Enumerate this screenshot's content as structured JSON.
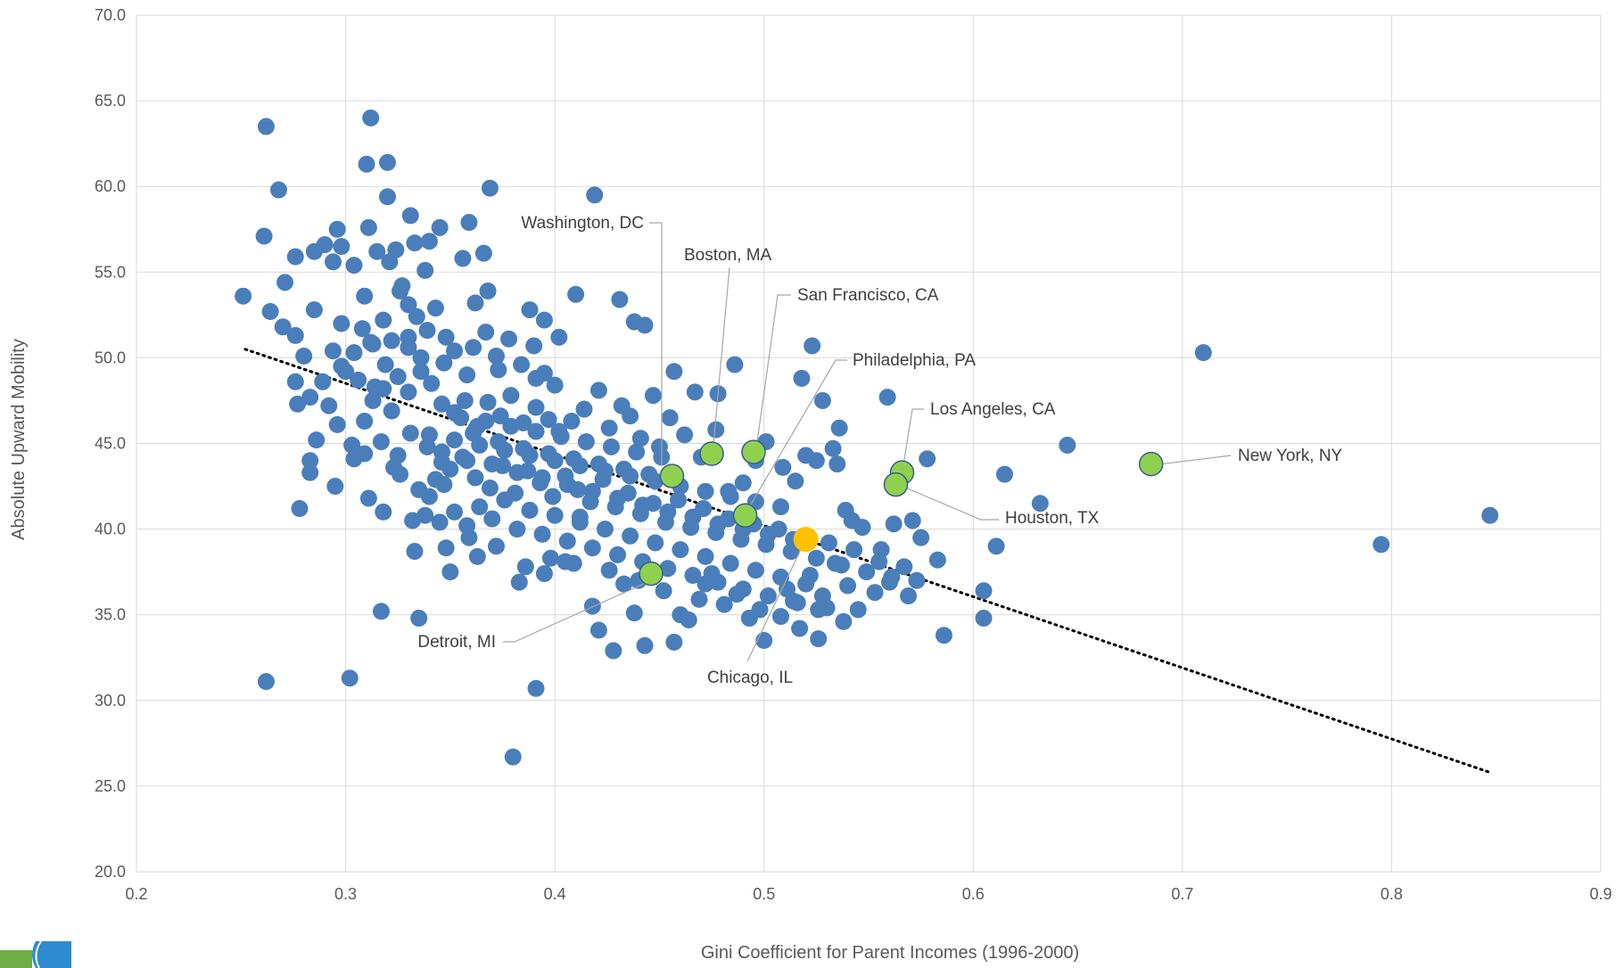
{
  "chart_data": {
    "type": "scatter",
    "title": "",
    "xlabel": "Gini Coefficient for Parent Incomes (1996-2000)",
    "ylabel": "Absolute Upward Mobility",
    "xlim": [
      0.2,
      0.9
    ],
    "ylim": [
      20.0,
      70.0
    ],
    "x_ticks": [
      "0.2",
      "0.3",
      "0.4",
      "0.5",
      "0.6",
      "0.7",
      "0.8",
      "0.9"
    ],
    "y_ticks": [
      "20.0",
      "25.0",
      "30.0",
      "35.0",
      "40.0",
      "45.0",
      "50.0",
      "55.0",
      "60.0",
      "65.0",
      "70.0"
    ],
    "grid": true,
    "legend": "none",
    "colors": {
      "points": "#4a7ebb",
      "highlight": "#8fd14f",
      "special": "#ffc000",
      "trendline": "#000000"
    },
    "trendline": {
      "style": "dotted",
      "x": [
        0.252,
        0.847
      ],
      "y": [
        50.5,
        25.8
      ]
    },
    "special_point": {
      "x": 0.52,
      "y": 39.4
    },
    "highlighted": [
      {
        "label": "Washington, DC",
        "x": 0.456,
        "y": 43.1
      },
      {
        "label": "Boston, MA",
        "x": 0.475,
        "y": 44.4
      },
      {
        "label": "San Francisco, CA",
        "x": 0.495,
        "y": 44.5
      },
      {
        "label": "Philadelphia, PA",
        "x": 0.491,
        "y": 40.8
      },
      {
        "label": "Los Angeles, CA",
        "x": 0.566,
        "y": 43.3
      },
      {
        "label": "New York, NY",
        "x": 0.685,
        "y": 43.8
      },
      {
        "label": "Houston, TX",
        "x": 0.563,
        "y": 42.6
      },
      {
        "label": "Detroit, MI",
        "x": 0.446,
        "y": 37.4
      },
      {
        "label": "Chicago, IL",
        "x": 0.52,
        "y": 39.4
      }
    ],
    "points": [
      [
        0.251,
        53.6
      ],
      [
        0.261,
        57.1
      ],
      [
        0.262,
        63.5
      ],
      [
        0.268,
        59.8
      ],
      [
        0.262,
        31.1
      ],
      [
        0.302,
        31.3
      ],
      [
        0.312,
        64.0
      ],
      [
        0.31,
        61.3
      ],
      [
        0.32,
        61.4
      ],
      [
        0.32,
        59.4
      ],
      [
        0.369,
        59.9
      ],
      [
        0.419,
        59.5
      ],
      [
        0.38,
        26.7
      ],
      [
        0.391,
        30.7
      ],
      [
        0.71,
        50.3
      ],
      [
        0.795,
        39.1
      ],
      [
        0.847,
        40.8
      ],
      [
        0.645,
        44.9
      ],
      [
        0.632,
        41.5
      ],
      [
        0.615,
        43.2
      ],
      [
        0.611,
        39.0
      ],
      [
        0.605,
        36.4
      ],
      [
        0.605,
        34.8
      ],
      [
        0.586,
        33.8
      ],
      [
        0.578,
        44.1
      ],
      [
        0.559,
        47.7
      ],
      [
        0.523,
        50.7
      ],
      [
        0.518,
        48.8
      ],
      [
        0.486,
        49.6
      ],
      [
        0.478,
        47.9
      ],
      [
        0.467,
        48.0
      ],
      [
        0.457,
        49.2
      ],
      [
        0.443,
        51.9
      ],
      [
        0.438,
        52.1
      ],
      [
        0.431,
        53.4
      ],
      [
        0.41,
        53.7
      ],
      [
        0.402,
        51.2
      ],
      [
        0.395,
        52.2
      ],
      [
        0.388,
        52.8
      ],
      [
        0.368,
        53.9
      ],
      [
        0.362,
        53.2
      ],
      [
        0.356,
        55.8
      ],
      [
        0.366,
        56.1
      ],
      [
        0.359,
        57.9
      ],
      [
        0.345,
        57.6
      ],
      [
        0.331,
        58.3
      ],
      [
        0.311,
        57.6
      ],
      [
        0.296,
        57.5
      ],
      [
        0.294,
        55.6
      ],
      [
        0.276,
        55.9
      ],
      [
        0.271,
        54.4
      ],
      [
        0.264,
        52.7
      ],
      [
        0.27,
        51.8
      ],
      [
        0.276,
        51.3
      ],
      [
        0.285,
        52.8
      ],
      [
        0.298,
        52.0
      ],
      [
        0.308,
        51.7
      ],
      [
        0.313,
        50.8
      ],
      [
        0.322,
        51.0
      ],
      [
        0.33,
        50.6
      ],
      [
        0.276,
        48.6
      ],
      [
        0.28,
        50.1
      ],
      [
        0.283,
        47.7
      ],
      [
        0.289,
        48.6
      ],
      [
        0.294,
        50.4
      ],
      [
        0.3,
        49.2
      ],
      [
        0.306,
        48.7
      ],
      [
        0.313,
        47.5
      ],
      [
        0.318,
        48.2
      ],
      [
        0.322,
        46.9
      ],
      [
        0.277,
        47.3
      ],
      [
        0.286,
        45.2
      ],
      [
        0.296,
        46.1
      ],
      [
        0.303,
        44.9
      ],
      [
        0.309,
        46.3
      ],
      [
        0.317,
        45.1
      ],
      [
        0.325,
        44.3
      ],
      [
        0.331,
        45.6
      ],
      [
        0.339,
        44.8
      ],
      [
        0.346,
        43.9
      ],
      [
        0.283,
        43.3
      ],
      [
        0.283,
        44.0
      ],
      [
        0.295,
        42.5
      ],
      [
        0.304,
        44.1
      ],
      [
        0.311,
        41.8
      ],
      [
        0.318,
        41.0
      ],
      [
        0.326,
        43.2
      ],
      [
        0.332,
        40.5
      ],
      [
        0.34,
        41.9
      ],
      [
        0.347,
        42.6
      ],
      [
        0.278,
        41.2
      ],
      [
        0.333,
        38.7
      ],
      [
        0.35,
        37.5
      ],
      [
        0.359,
        39.5
      ],
      [
        0.317,
        35.2
      ],
      [
        0.335,
        34.8
      ],
      [
        0.383,
        36.9
      ],
      [
        0.398,
        38.3
      ],
      [
        0.405,
        38.1
      ],
      [
        0.412,
        40.7
      ],
      [
        0.418,
        35.5
      ],
      [
        0.421,
        34.1
      ],
      [
        0.428,
        32.9
      ],
      [
        0.438,
        35.1
      ],
      [
        0.443,
        33.2
      ],
      [
        0.457,
        33.4
      ],
      [
        0.46,
        35.0
      ],
      [
        0.464,
        34.7
      ],
      [
        0.472,
        36.8
      ],
      [
        0.487,
        36.2
      ],
      [
        0.5,
        33.5
      ],
      [
        0.508,
        34.9
      ],
      [
        0.516,
        35.7
      ],
      [
        0.526,
        33.6
      ],
      [
        0.53,
        35.4
      ],
      [
        0.538,
        34.6
      ],
      [
        0.545,
        35.3
      ],
      [
        0.553,
        36.3
      ],
      [
        0.56,
        36.9
      ],
      [
        0.569,
        36.1
      ],
      [
        0.583,
        38.2
      ],
      [
        0.575,
        39.5
      ],
      [
        0.571,
        40.5
      ],
      [
        0.562,
        40.3
      ],
      [
        0.556,
        38.8
      ],
      [
        0.547,
        40.1
      ],
      [
        0.542,
        40.5
      ],
      [
        0.539,
        41.1
      ],
      [
        0.535,
        43.8
      ],
      [
        0.533,
        44.7
      ],
      [
        0.536,
        45.9
      ],
      [
        0.528,
        47.5
      ],
      [
        0.525,
        44.0
      ],
      [
        0.52,
        44.3
      ],
      [
        0.515,
        42.8
      ],
      [
        0.509,
        43.6
      ],
      [
        0.501,
        45.1
      ],
      [
        0.496,
        44.0
      ],
      [
        0.49,
        42.7
      ],
      [
        0.483,
        42.2
      ],
      [
        0.477,
        45.8
      ],
      [
        0.47,
        44.2
      ],
      [
        0.462,
        45.5
      ],
      [
        0.455,
        46.5
      ],
      [
        0.45,
        44.8
      ],
      [
        0.447,
        47.8
      ],
      [
        0.441,
        45.3
      ],
      [
        0.436,
        46.6
      ],
      [
        0.432,
        47.2
      ],
      [
        0.426,
        45.9
      ],
      [
        0.421,
        48.1
      ],
      [
        0.414,
        47.0
      ],
      [
        0.408,
        46.3
      ],
      [
        0.402,
        45.7
      ],
      [
        0.397,
        46.4
      ],
      [
        0.391,
        47.1
      ],
      [
        0.385,
        46.2
      ],
      [
        0.379,
        47.8
      ],
      [
        0.374,
        46.6
      ],
      [
        0.368,
        47.4
      ],
      [
        0.363,
        46.0
      ],
      [
        0.357,
        47.5
      ],
      [
        0.352,
        46.8
      ],
      [
        0.346,
        47.3
      ],
      [
        0.341,
        48.5
      ],
      [
        0.336,
        49.2
      ],
      [
        0.33,
        48.0
      ],
      [
        0.325,
        48.9
      ],
      [
        0.319,
        49.6
      ],
      [
        0.314,
        48.3
      ],
      [
        0.33,
        53.1
      ],
      [
        0.334,
        52.4
      ],
      [
        0.339,
        51.6
      ],
      [
        0.343,
        52.9
      ],
      [
        0.348,
        51.2
      ],
      [
        0.352,
        50.4
      ],
      [
        0.338,
        55.1
      ],
      [
        0.327,
        54.2
      ],
      [
        0.321,
        55.6
      ],
      [
        0.315,
        56.2
      ],
      [
        0.304,
        55.4
      ],
      [
        0.298,
        56.5
      ],
      [
        0.29,
        56.6
      ],
      [
        0.285,
        56.2
      ],
      [
        0.309,
        53.6
      ],
      [
        0.318,
        52.2
      ],
      [
        0.326,
        53.9
      ],
      [
        0.333,
        56.7
      ],
      [
        0.34,
        56.8
      ],
      [
        0.324,
        56.3
      ],
      [
        0.361,
        50.6
      ],
      [
        0.367,
        51.5
      ],
      [
        0.372,
        50.1
      ],
      [
        0.378,
        51.1
      ],
      [
        0.384,
        49.6
      ],
      [
        0.39,
        50.7
      ],
      [
        0.395,
        49.1
      ],
      [
        0.4,
        48.4
      ],
      [
        0.391,
        48.8
      ],
      [
        0.373,
        49.3
      ],
      [
        0.358,
        49.0
      ],
      [
        0.347,
        49.7
      ],
      [
        0.336,
        50.0
      ],
      [
        0.33,
        51.2
      ],
      [
        0.312,
        50.9
      ],
      [
        0.304,
        50.3
      ],
      [
        0.298,
        49.5
      ],
      [
        0.292,
        47.2
      ],
      [
        0.309,
        44.4
      ],
      [
        0.323,
        43.6
      ],
      [
        0.335,
        42.3
      ],
      [
        0.343,
        42.9
      ],
      [
        0.35,
        43.5
      ],
      [
        0.356,
        44.2
      ],
      [
        0.362,
        43.0
      ],
      [
        0.369,
        42.4
      ],
      [
        0.375,
        43.7
      ],
      [
        0.381,
        42.1
      ],
      [
        0.387,
        43.4
      ],
      [
        0.393,
        42.7
      ],
      [
        0.399,
        41.9
      ],
      [
        0.405,
        43.1
      ],
      [
        0.411,
        42.3
      ],
      [
        0.417,
        41.6
      ],
      [
        0.423,
        42.9
      ],
      [
        0.429,
        41.3
      ],
      [
        0.435,
        42.1
      ],
      [
        0.441,
        40.9
      ],
      [
        0.447,
        41.5
      ],
      [
        0.453,
        40.4
      ],
      [
        0.459,
        41.7
      ],
      [
        0.465,
        40.1
      ],
      [
        0.471,
        41.2
      ],
      [
        0.477,
        39.8
      ],
      [
        0.483,
        40.6
      ],
      [
        0.489,
        39.4
      ],
      [
        0.495,
        40.3
      ],
      [
        0.501,
        39.1
      ],
      [
        0.507,
        40.0
      ],
      [
        0.513,
        38.7
      ],
      [
        0.519,
        39.6
      ],
      [
        0.525,
        38.3
      ],
      [
        0.531,
        39.2
      ],
      [
        0.537,
        37.9
      ],
      [
        0.543,
        38.8
      ],
      [
        0.549,
        37.5
      ],
      [
        0.555,
        38.1
      ],
      [
        0.561,
        37.2
      ],
      [
        0.567,
        37.8
      ],
      [
        0.573,
        37.0
      ],
      [
        0.352,
        41.0
      ],
      [
        0.358,
        40.2
      ],
      [
        0.364,
        41.3
      ],
      [
        0.37,
        40.6
      ],
      [
        0.376,
        41.7
      ],
      [
        0.382,
        40.0
      ],
      [
        0.388,
        41.1
      ],
      [
        0.394,
        39.7
      ],
      [
        0.4,
        40.8
      ],
      [
        0.406,
        39.3
      ],
      [
        0.412,
        40.4
      ],
      [
        0.418,
        38.9
      ],
      [
        0.424,
        40.0
      ],
      [
        0.43,
        38.5
      ],
      [
        0.436,
        39.6
      ],
      [
        0.442,
        38.1
      ],
      [
        0.448,
        39.2
      ],
      [
        0.454,
        37.7
      ],
      [
        0.46,
        38.8
      ],
      [
        0.466,
        37.3
      ],
      [
        0.472,
        38.4
      ],
      [
        0.478,
        36.9
      ],
      [
        0.484,
        38.0
      ],
      [
        0.49,
        36.5
      ],
      [
        0.496,
        37.6
      ],
      [
        0.502,
        36.1
      ],
      [
        0.508,
        37.2
      ],
      [
        0.514,
        35.8
      ],
      [
        0.52,
        36.8
      ],
      [
        0.526,
        35.3
      ],
      [
        0.34,
        45.5
      ],
      [
        0.346,
        44.5
      ],
      [
        0.352,
        45.2
      ],
      [
        0.358,
        44.0
      ],
      [
        0.364,
        44.9
      ],
      [
        0.37,
        43.8
      ],
      [
        0.376,
        44.6
      ],
      [
        0.382,
        43.3
      ],
      [
        0.388,
        44.3
      ],
      [
        0.394,
        43.0
      ],
      [
        0.4,
        44.0
      ],
      [
        0.406,
        42.6
      ],
      [
        0.412,
        43.7
      ],
      [
        0.418,
        42.2
      ],
      [
        0.424,
        43.4
      ],
      [
        0.43,
        41.8
      ],
      [
        0.436,
        43.1
      ],
      [
        0.442,
        41.4
      ],
      [
        0.448,
        42.8
      ],
      [
        0.454,
        41.0
      ],
      [
        0.46,
        42.5
      ],
      [
        0.466,
        40.7
      ],
      [
        0.472,
        42.2
      ],
      [
        0.478,
        40.3
      ],
      [
        0.484,
        41.9
      ],
      [
        0.49,
        40.0
      ],
      [
        0.496,
        41.6
      ],
      [
        0.502,
        39.7
      ],
      [
        0.508,
        41.3
      ],
      [
        0.514,
        39.4
      ],
      [
        0.355,
        46.5
      ],
      [
        0.361,
        45.6
      ],
      [
        0.367,
        46.3
      ],
      [
        0.373,
        45.1
      ],
      [
        0.379,
        46.0
      ],
      [
        0.385,
        44.7
      ],
      [
        0.391,
        45.7
      ],
      [
        0.397,
        44.4
      ],
      [
        0.403,
        45.4
      ],
      [
        0.409,
        44.1
      ],
      [
        0.415,
        45.1
      ],
      [
        0.421,
        43.8
      ],
      [
        0.427,
        44.8
      ],
      [
        0.433,
        43.5
      ],
      [
        0.439,
        44.5
      ],
      [
        0.445,
        43.2
      ],
      [
        0.451,
        44.2
      ],
      [
        0.345,
        40.4
      ],
      [
        0.338,
        40.8
      ],
      [
        0.348,
        38.9
      ],
      [
        0.363,
        38.4
      ],
      [
        0.372,
        39.0
      ],
      [
        0.386,
        37.8
      ],
      [
        0.395,
        37.4
      ],
      [
        0.409,
        38.0
      ],
      [
        0.426,
        37.6
      ],
      [
        0.433,
        36.8
      ],
      [
        0.44,
        37.0
      ],
      [
        0.452,
        36.4
      ],
      [
        0.469,
        35.9
      ],
      [
        0.475,
        37.4
      ],
      [
        0.481,
        35.6
      ],
      [
        0.493,
        34.8
      ],
      [
        0.498,
        35.3
      ],
      [
        0.511,
        36.5
      ],
      [
        0.517,
        34.2
      ],
      [
        0.522,
        37.3
      ],
      [
        0.528,
        36.1
      ],
      [
        0.534,
        38.0
      ],
      [
        0.54,
        36.7
      ]
    ]
  }
}
